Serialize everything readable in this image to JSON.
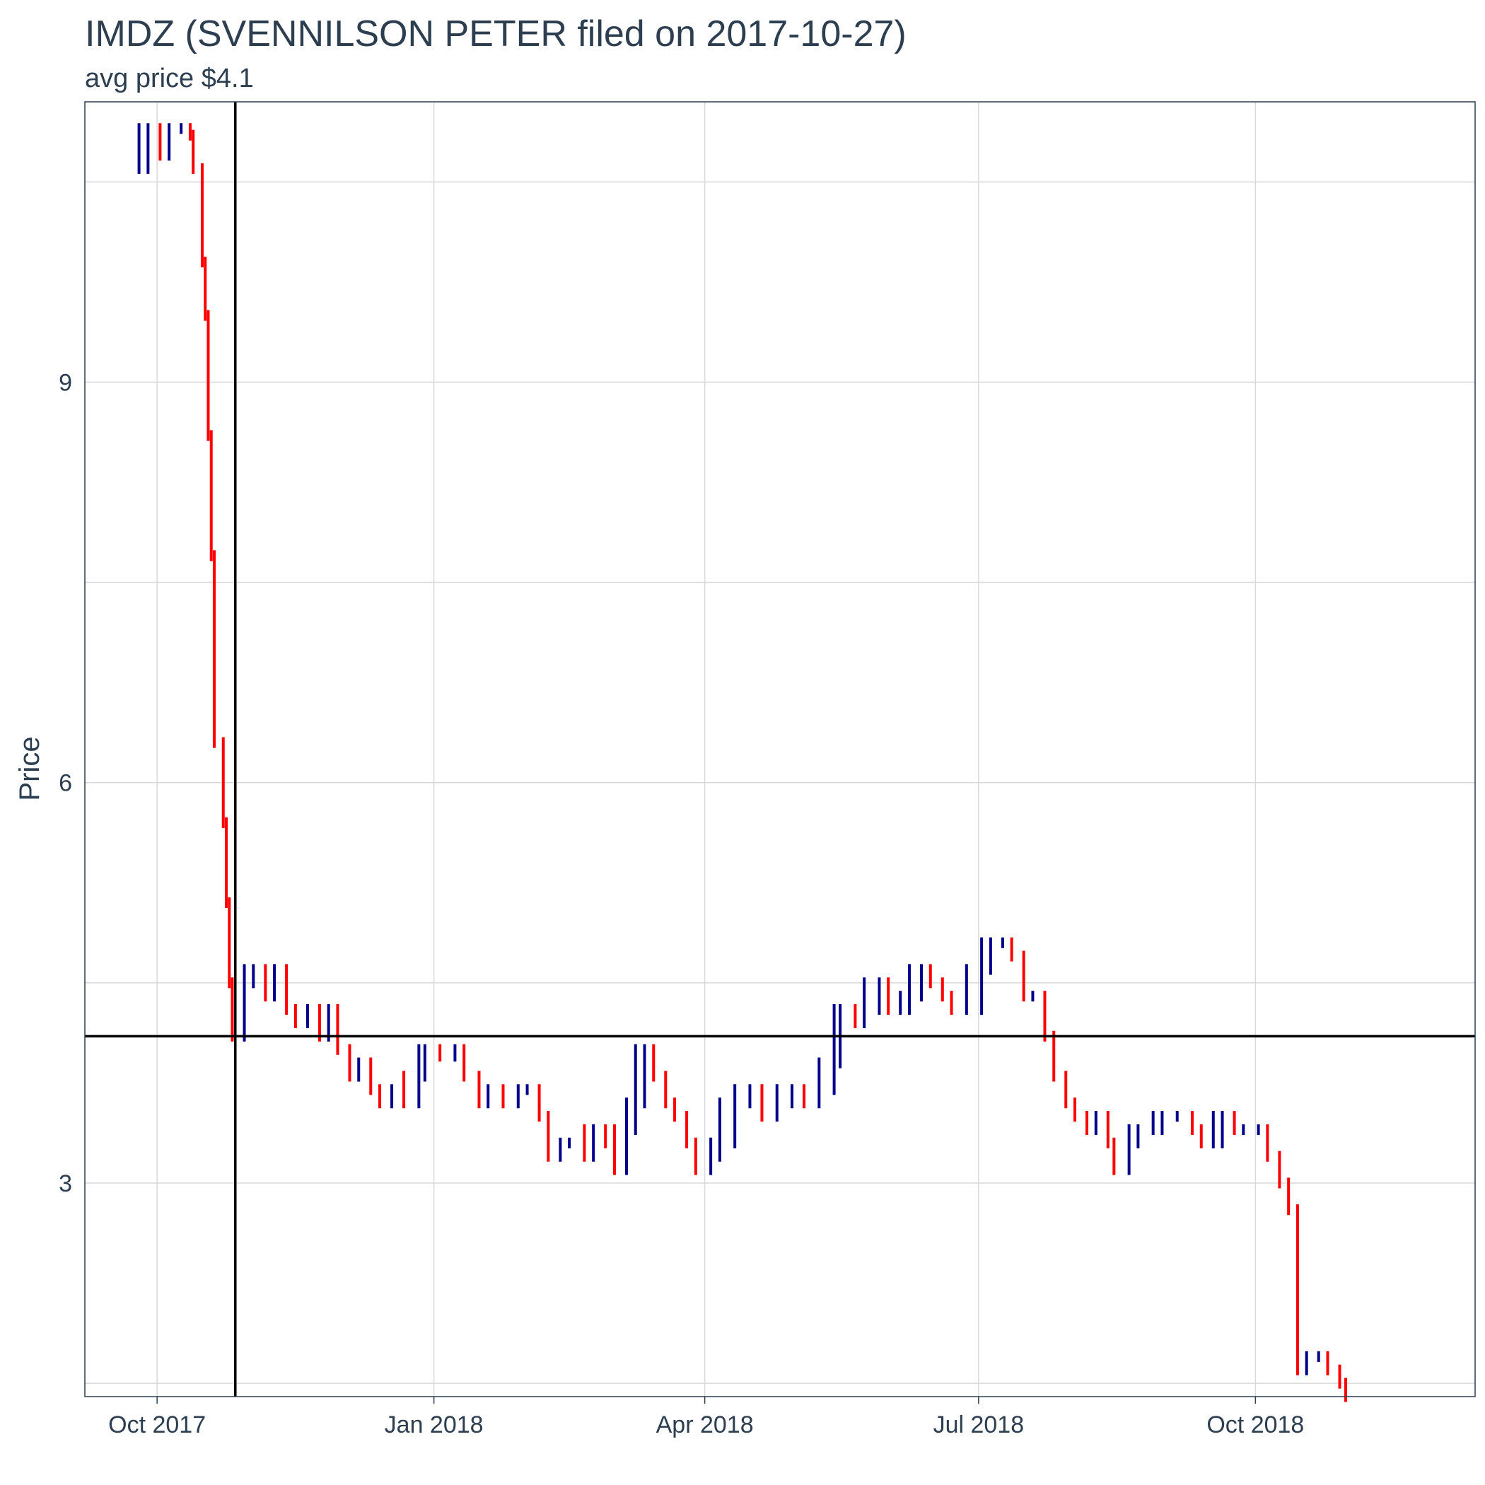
{
  "chart_data": {
    "type": "ohlc",
    "title": "IMDZ (SVENNILSON PETER filed on 2017-10-27)",
    "subtitle": "avg price $4.1",
    "xlabel": "",
    "ylabel": "Price",
    "ylim": [
      1.4,
      11.1
    ],
    "x_ticks": [
      {
        "date": "2017-10-01",
        "label": "Oct 2017"
      },
      {
        "date": "2018-01-01",
        "label": "Jan 2018"
      },
      {
        "date": "2018-04-01",
        "label": "Apr 2018"
      },
      {
        "date": "2018-07-01",
        "label": "Jul 2018"
      },
      {
        "date": "2018-10-01",
        "label": "Oct 2018"
      }
    ],
    "xlim": [
      "2017-09-07",
      "2018-12-13"
    ],
    "y_ticks": [
      3,
      6,
      9
    ],
    "y_minor_gridlines": [
      1.5,
      4.5,
      7.5,
      10.5
    ],
    "filing_date": "2017-10-27",
    "avg_price": 4.1,
    "colors": {
      "up": "#00008b",
      "down": "#ff0000",
      "reference": "#000000",
      "grid": "#d9d9d9",
      "text": "#2c3e50",
      "panel_border": "#2c3e50"
    },
    "price_points": [
      [
        "2017-09-25",
        10.6
      ],
      [
        "2017-09-28",
        10.9
      ],
      [
        "2017-10-02",
        10.7
      ],
      [
        "2017-10-05",
        10.9
      ],
      [
        "2017-10-09",
        10.9
      ],
      [
        "2017-10-12",
        10.85
      ],
      [
        "2017-10-13",
        10.6
      ],
      [
        "2017-10-16",
        9.9
      ],
      [
        "2017-10-17",
        9.5
      ],
      [
        "2017-10-18",
        8.6
      ],
      [
        "2017-10-19",
        7.7
      ],
      [
        "2017-10-20",
        6.3
      ],
      [
        "2017-10-23",
        5.7
      ],
      [
        "2017-10-24",
        5.1
      ],
      [
        "2017-10-25",
        4.5
      ],
      [
        "2017-10-26",
        4.1
      ],
      [
        "2017-10-30",
        4.5
      ],
      [
        "2017-11-02",
        4.6
      ],
      [
        "2017-11-06",
        4.4
      ],
      [
        "2017-11-09",
        4.6
      ],
      [
        "2017-11-13",
        4.3
      ],
      [
        "2017-11-16",
        4.2
      ],
      [
        "2017-11-20",
        4.3
      ],
      [
        "2017-11-24",
        4.1
      ],
      [
        "2017-11-27",
        4.3
      ],
      [
        "2017-11-30",
        4.0
      ],
      [
        "2017-12-04",
        3.8
      ],
      [
        "2017-12-07",
        3.9
      ],
      [
        "2017-12-11",
        3.7
      ],
      [
        "2017-12-14",
        3.6
      ],
      [
        "2017-12-18",
        3.7
      ],
      [
        "2017-12-22",
        3.6
      ],
      [
        "2017-12-27",
        3.8
      ],
      [
        "2017-12-29",
        4.0
      ],
      [
        "2018-01-03",
        3.95
      ],
      [
        "2018-01-08",
        4.0
      ],
      [
        "2018-01-11",
        3.8
      ],
      [
        "2018-01-16",
        3.6
      ],
      [
        "2018-01-19",
        3.7
      ],
      [
        "2018-01-24",
        3.6
      ],
      [
        "2018-01-29",
        3.7
      ],
      [
        "2018-02-01",
        3.7
      ],
      [
        "2018-02-05",
        3.5
      ],
      [
        "2018-02-08",
        3.2
      ],
      [
        "2018-02-12",
        3.3
      ],
      [
        "2018-02-15",
        3.3
      ],
      [
        "2018-02-20",
        3.2
      ],
      [
        "2018-02-23",
        3.4
      ],
      [
        "2018-02-27",
        3.3
      ],
      [
        "2018-03-02",
        3.1
      ],
      [
        "2018-03-06",
        3.4
      ],
      [
        "2018-03-09",
        3.6
      ],
      [
        "2018-03-12",
        4.0
      ],
      [
        "2018-03-15",
        3.8
      ],
      [
        "2018-03-19",
        3.6
      ],
      [
        "2018-03-22",
        3.5
      ],
      [
        "2018-03-26",
        3.3
      ],
      [
        "2018-03-29",
        3.1
      ],
      [
        "2018-04-03",
        3.2
      ],
      [
        "2018-04-06",
        3.3
      ],
      [
        "2018-04-11",
        3.6
      ],
      [
        "2018-04-16",
        3.7
      ],
      [
        "2018-04-20",
        3.5
      ],
      [
        "2018-04-25",
        3.6
      ],
      [
        "2018-04-30",
        3.7
      ],
      [
        "2018-05-04",
        3.6
      ],
      [
        "2018-05-09",
        3.7
      ],
      [
        "2018-05-14",
        3.9
      ],
      [
        "2018-05-16",
        4.3
      ],
      [
        "2018-05-21",
        4.2
      ],
      [
        "2018-05-24",
        4.3
      ],
      [
        "2018-05-29",
        4.5
      ],
      [
        "2018-06-01",
        4.3
      ],
      [
        "2018-06-05",
        4.3
      ],
      [
        "2018-06-08",
        4.4
      ],
      [
        "2018-06-12",
        4.6
      ],
      [
        "2018-06-15",
        4.5
      ],
      [
        "2018-06-19",
        4.4
      ],
      [
        "2018-06-22",
        4.3
      ],
      [
        "2018-06-27",
        4.3
      ],
      [
        "2018-07-02",
        4.6
      ],
      [
        "2018-07-05",
        4.8
      ],
      [
        "2018-07-09",
        4.8
      ],
      [
        "2018-07-12",
        4.7
      ],
      [
        "2018-07-16",
        4.4
      ],
      [
        "2018-07-19",
        4.4
      ],
      [
        "2018-07-23",
        4.1
      ],
      [
        "2018-07-26",
        3.8
      ],
      [
        "2018-07-30",
        3.6
      ],
      [
        "2018-08-02",
        3.5
      ],
      [
        "2018-08-06",
        3.4
      ],
      [
        "2018-08-09",
        3.5
      ],
      [
        "2018-08-13",
        3.3
      ],
      [
        "2018-08-15",
        3.1
      ],
      [
        "2018-08-20",
        3.3
      ],
      [
        "2018-08-23",
        3.4
      ],
      [
        "2018-08-28",
        3.4
      ],
      [
        "2018-08-31",
        3.5
      ],
      [
        "2018-09-05",
        3.5
      ],
      [
        "2018-09-10",
        3.4
      ],
      [
        "2018-09-13",
        3.3
      ],
      [
        "2018-09-17",
        3.3
      ],
      [
        "2018-09-20",
        3.5
      ],
      [
        "2018-09-24",
        3.4
      ],
      [
        "2018-09-27",
        3.4
      ],
      [
        "2018-10-02",
        3.4
      ],
      [
        "2018-10-05",
        3.2
      ],
      [
        "2018-10-09",
        3.0
      ],
      [
        "2018-10-12",
        2.8
      ],
      [
        "2018-10-15",
        1.6
      ],
      [
        "2018-10-18",
        1.7
      ],
      [
        "2018-10-22",
        1.7
      ],
      [
        "2018-10-25",
        1.6
      ],
      [
        "2018-10-29",
        1.5
      ],
      [
        "2018-10-31",
        1.4
      ]
    ]
  }
}
